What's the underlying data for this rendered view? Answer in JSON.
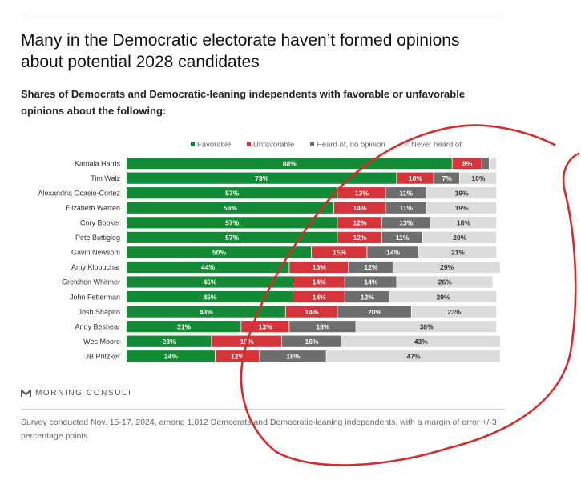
{
  "title": "Many in the Democratic electorate haven’t formed opinions about potential 2028 candidates",
  "subtitle": "Shares of Democrats and Democratic-leaning independents with favorable or unfavorable opinions about the following:",
  "brand": "MORNING CONSULT",
  "footnote": "Survey conducted Nov. 15-17, 2024, among 1,012 Democrats and Democratic-leaning independents, with a margin of error +/-3 percentage points.",
  "chart_data": {
    "type": "bar",
    "orientation": "horizontal",
    "stacked": true,
    "xlim": [
      0,
      100
    ],
    "categories": [
      "Kamala Harris",
      "Tim Walz",
      "Alexandria Ocasio-Cortez",
      "Elizabeth Warren",
      "Cory Booker",
      "Pete Buttigieg",
      "Gavin Newsom",
      "Amy Klobuchar",
      "Gretchen Whitmer",
      "John Fetterman",
      "Josh Shapiro",
      "Andy Beshear",
      "Wes Moore",
      "JB Pritzker"
    ],
    "series": [
      {
        "name": "Favorable",
        "color": "#138a36",
        "values": [
          88,
          73,
          57,
          56,
          57,
          57,
          50,
          44,
          45,
          45,
          43,
          31,
          23,
          24
        ]
      },
      {
        "name": "Unfavorable",
        "color": "#d4343a",
        "values": [
          8,
          10,
          13,
          14,
          12,
          12,
          15,
          16,
          14,
          14,
          14,
          13,
          19,
          12
        ]
      },
      {
        "name": "Heard of, no opinion",
        "color": "#6d6e70",
        "values": [
          2,
          7,
          11,
          11,
          13,
          11,
          14,
          12,
          14,
          12,
          20,
          18,
          16,
          18
        ]
      },
      {
        "name": "Never heard of",
        "color": "#dcdcdc",
        "values": [
          2,
          10,
          19,
          19,
          18,
          20,
          21,
          29,
          26,
          29,
          23,
          38,
          43,
          47
        ]
      }
    ],
    "data_labels": [
      [
        "88%",
        "8%",
        "",
        ""
      ],
      [
        "73%",
        "10%",
        "7%",
        "10%"
      ],
      [
        "57%",
        "13%",
        "11%",
        "19%"
      ],
      [
        "56%",
        "14%",
        "11%",
        "19%"
      ],
      [
        "57%",
        "12%",
        "13%",
        "18%"
      ],
      [
        "57%",
        "12%",
        "11%",
        "20%"
      ],
      [
        "50%",
        "15%",
        "14%",
        "21%"
      ],
      [
        "44%",
        "16%",
        "12%",
        "29%"
      ],
      [
        "45%",
        "14%",
        "14%",
        "26%"
      ],
      [
        "45%",
        "14%",
        "12%",
        "29%"
      ],
      [
        "43%",
        "14%",
        "20%",
        "23%"
      ],
      [
        "31%",
        "13%",
        "18%",
        "38%"
      ],
      [
        "23%",
        "19%",
        "16%",
        "43%"
      ],
      [
        "24%",
        "12%",
        "18%",
        "47%"
      ]
    ],
    "legend": "top",
    "grid": false
  },
  "annotation": {
    "shape": "hand-drawn loop",
    "color": "#d62b2b"
  }
}
